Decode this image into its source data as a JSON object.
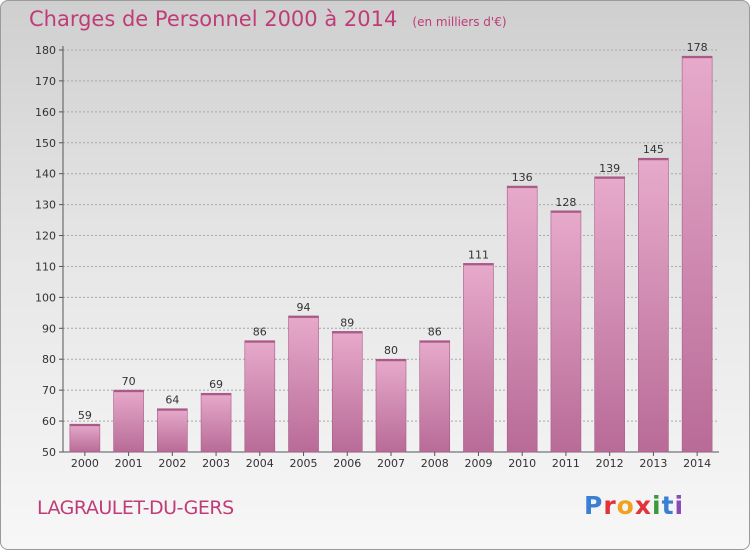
{
  "header": {
    "title": "Charges de Personnel 2000 à 2014",
    "unit_note": "(en milliers d'€)"
  },
  "footer": {
    "city": "LAGRAULET-DU-GERS",
    "logo_letters": [
      "P",
      "r",
      "o",
      "x",
      "i",
      "t",
      "i"
    ],
    "logo_colors": [
      "#3a7fd4",
      "#e2323a",
      "#f2a11f",
      "#e2323a",
      "#3a9a3a",
      "#3a7fd4",
      "#8a4ab8"
    ]
  },
  "colors": {
    "bar_top": "#e7aacb",
    "bar_bottom": "#b86b97",
    "bar_edge": "#a95a86",
    "title": "#c03c78"
  },
  "chart_data": {
    "type": "bar",
    "categories": [
      "2000",
      "2001",
      "2002",
      "2003",
      "2004",
      "2005",
      "2006",
      "2007",
      "2008",
      "2009",
      "2010",
      "2011",
      "2012",
      "2013",
      "2014"
    ],
    "values": [
      59,
      70,
      64,
      69,
      86,
      94,
      89,
      80,
      86,
      111,
      136,
      128,
      139,
      145,
      178
    ],
    "title": "Charges de Personnel 2000 à 2014",
    "subtitle": "(en milliers d'€)",
    "xlabel": "",
    "ylabel": "",
    "ylim": [
      50,
      180
    ],
    "yticks": [
      50,
      60,
      70,
      80,
      90,
      100,
      110,
      120,
      130,
      140,
      150,
      160,
      170,
      180
    ],
    "grid": true,
    "legend": "none"
  }
}
